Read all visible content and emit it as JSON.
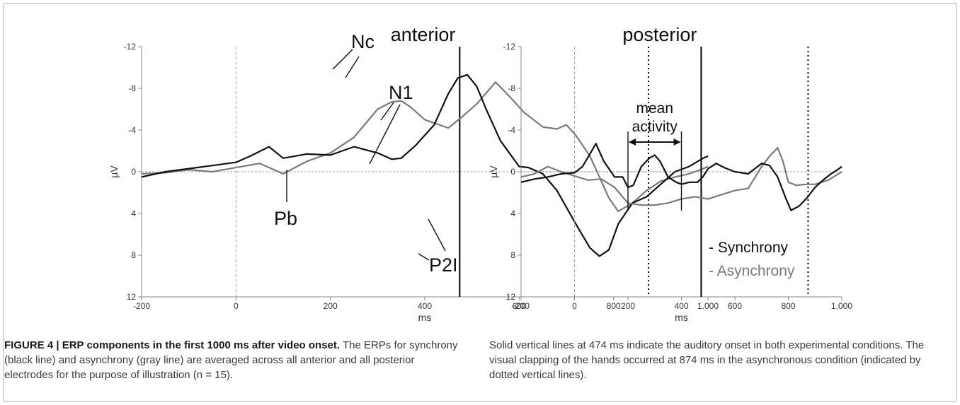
{
  "figure": {
    "caption": {
      "title": "FIGURE 4 | ERP components in the first 1000 ms after video onset.",
      "left_text": " The ERPs for synchrony (black line) and asynchrony (gray line) are averaged across all anterior and all posterior electrodes for the purpose of illustration (n = 15).",
      "right_text": "Solid vertical lines at 474 ms indicate the auditory onset in both experimental conditions. The visual clapping of the hands occurred at 874 ms in the asynchronous condition (indicated by dotted vertical lines)."
    },
    "colors": {
      "synchrony": "#111111",
      "asynchrony": "#7a7a7a",
      "frame": "#8a8a8a"
    }
  },
  "chart_data": [
    {
      "type": "line",
      "title": "anterior",
      "xlabel": "ms",
      "ylabel": "µV",
      "xlim": [
        -200,
        1000
      ],
      "ylim": [
        -12,
        12
      ],
      "y_inverted": true,
      "x_tick_labels": [
        "-200",
        "0",
        "200",
        "400",
        "600",
        "800",
        "1.000"
      ],
      "y_tick_labels": [
        "-12",
        "-8",
        "-4",
        "0",
        "4",
        "8",
        "12"
      ],
      "vertical_markers": [
        {
          "x": 0,
          "style": "dashed"
        },
        {
          "x": 474,
          "style": "solid"
        },
        {
          "x": 874,
          "style": "dotted"
        }
      ],
      "series": [
        {
          "key": "synchrony",
          "x": [
            -200,
            -150,
            -100,
            -50,
            0,
            30,
            70,
            100,
            150,
            200,
            250,
            300,
            330,
            350,
            380,
            420,
            450,
            470,
            490,
            510,
            530,
            560,
            600,
            620,
            650,
            680,
            720,
            750,
            770,
            790,
            810,
            840,
            870,
            900,
            930,
            960,
            990,
            1000
          ],
          "y": [
            0.5,
            0,
            -0.3,
            -0.6,
            -0.9,
            -1.5,
            -2.4,
            -1.3,
            -1.7,
            -1.6,
            -2.4,
            -1.8,
            -1.2,
            -1.3,
            -2.5,
            -4.5,
            -7.5,
            -9,
            -9.3,
            -8.2,
            -6,
            -3,
            -0.5,
            -0.4,
            0.2,
            1.8,
            5,
            7.3,
            8.1,
            7.5,
            5,
            3,
            2.4,
            1.2,
            0,
            -0.5,
            -1.3,
            -1.5
          ]
        },
        {
          "key": "asynchrony",
          "x": [
            -200,
            -150,
            -100,
            -50,
            0,
            50,
            100,
            150,
            200,
            250,
            300,
            330,
            350,
            370,
            400,
            450,
            480,
            510,
            550,
            580,
            610,
            650,
            680,
            700,
            720,
            750,
            770,
            790,
            810,
            840,
            870,
            900,
            930,
            960,
            990,
            1000
          ],
          "y": [
            0.2,
            0.1,
            -0.2,
            0,
            -0.4,
            -0.8,
            0.2,
            -1,
            -1.8,
            -3.3,
            -6,
            -6.7,
            -6.8,
            -6.2,
            -5,
            -4.2,
            -5.3,
            -6.5,
            -8.6,
            -7.2,
            -5.7,
            -4.3,
            -4.1,
            -4.5,
            -3.5,
            -1.5,
            0.5,
            2.5,
            3.8,
            3,
            1.8,
            0.9,
            0.5,
            0.2,
            -0.3,
            -0.5
          ]
        }
      ],
      "annotations": [
        "Nc",
        "N1",
        "Pb",
        "P2I"
      ]
    },
    {
      "type": "line",
      "title": "posterior",
      "xlabel": "ms",
      "ylabel": "µV",
      "xlim": [
        -200,
        1000
      ],
      "ylim": [
        -12,
        12
      ],
      "y_inverted": true,
      "x_tick_labels": [
        "-200",
        "0",
        "200",
        "400",
        "600",
        "800",
        "1.000"
      ],
      "y_tick_labels": [
        "-12",
        "-8",
        "-4",
        "0",
        "4",
        "8",
        "12"
      ],
      "vertical_markers": [
        {
          "x": 0,
          "style": "dashed"
        },
        {
          "x": 474,
          "style": "solid"
        },
        {
          "x": 874,
          "style": "dotted"
        }
      ],
      "series": [
        {
          "key": "synchrony",
          "x": [
            -200,
            -150,
            -100,
            -50,
            0,
            30,
            60,
            80,
            110,
            150,
            180,
            200,
            220,
            250,
            280,
            300,
            320,
            350,
            380,
            400,
            430,
            460,
            480,
            500,
            530,
            560,
            600,
            650,
            700,
            730,
            760,
            790,
            810,
            840,
            870,
            900,
            930,
            960,
            990,
            1000
          ],
          "y": [
            1,
            0.7,
            0.5,
            0.2,
            0.1,
            -0.5,
            -1.8,
            -2.7,
            -1,
            0.5,
            0.5,
            1.5,
            1.3,
            -0.5,
            -1.3,
            -1.6,
            -1,
            0.5,
            1,
            1.2,
            1,
            1,
            0.5,
            -0.3,
            -0.8,
            -0.4,
            0,
            0.2,
            -0.8,
            -0.6,
            0.5,
            2.5,
            3.7,
            3.3,
            2.5,
            1.5,
            0.8,
            0.2,
            -0.3,
            -0.5
          ]
        },
        {
          "key": "asynchrony",
          "x": [
            -200,
            -150,
            -100,
            -50,
            0,
            50,
            100,
            150,
            200,
            250,
            300,
            350,
            400,
            450,
            500,
            550,
            600,
            650,
            700,
            730,
            760,
            780,
            800,
            830,
            870,
            900,
            950,
            1000
          ],
          "y": [
            0.5,
            0.2,
            -0.5,
            0,
            0.4,
            0.8,
            0.7,
            1.5,
            3,
            3.2,
            3.2,
            3,
            2.6,
            2.4,
            2.6,
            2.2,
            1.8,
            1.6,
            -0.5,
            -1.5,
            -2.3,
            -1,
            1,
            1.3,
            1.2,
            1.2,
            0.8,
            0
          ]
        }
      ],
      "annotations": [
        "mean activity"
      ],
      "mean_window": [
        200,
        400
      ],
      "legend": {
        "placement": "bottom-right",
        "items": [
          {
            "key": "synchrony",
            "label": "- Synchrony"
          },
          {
            "key": "asynchrony",
            "label": "- Asynchrony"
          }
        ]
      }
    }
  ]
}
